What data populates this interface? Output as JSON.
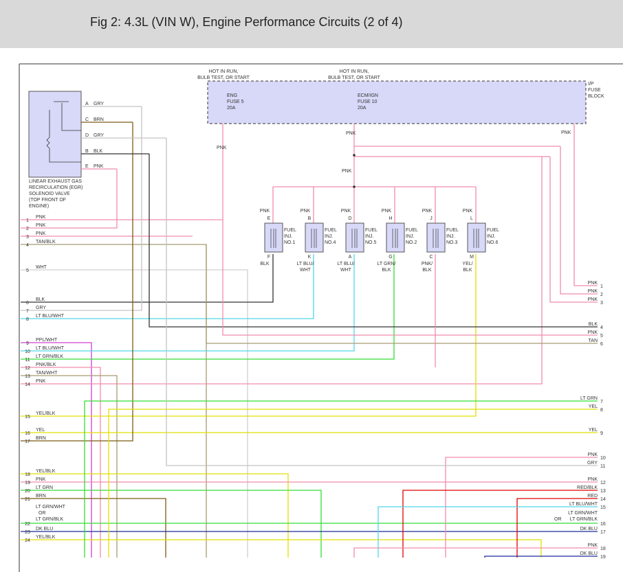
{
  "header": {
    "title": "Fig 2: 4.3L (VIN W), Engine Performance Circuits (2 of 4)"
  },
  "fuse_block": {
    "hot_left": [
      "HOT IN RUN,",
      "BULB TEST, OR START"
    ],
    "hot_right": [
      "HOT IN RUN,",
      "BULB TEST, OR START"
    ],
    "fuse_left": [
      "ENG",
      "FUSE 5",
      "20A"
    ],
    "fuse_right": [
      "ECM/IGN",
      "FUSE 10",
      "20A"
    ],
    "name": [
      "I/P",
      "FUSE",
      "BLOCK"
    ],
    "wire_left": "PNK",
    "wire_center": "PNK",
    "wire_right": "PNK",
    "wire_splice": "PNK"
  },
  "egr": {
    "pins": [
      [
        "A",
        "GRY"
      ],
      [
        "C",
        "BRN"
      ],
      [
        "D",
        "GRY"
      ],
      [
        "B",
        "BLK"
      ],
      [
        "E",
        "PNK"
      ]
    ],
    "caption": [
      "LINEAR EXHAUST GAS",
      "RECIRCULATION (EGR)",
      "SOLENOID VALVE",
      "(TOP FRONT OF",
      "ENGINE)"
    ]
  },
  "injectors": [
    {
      "top_color": "PNK",
      "top_pin": "E",
      "name": [
        "FUEL",
        "INJ.",
        "NO.1"
      ],
      "bottom_pin": "F",
      "bottom_color": [
        "BLK"
      ]
    },
    {
      "top_color": "PNK",
      "top_pin": "B",
      "name": [
        "FUEL",
        "INJ.",
        "NO.4"
      ],
      "bottom_pin": "K",
      "bottom_color": [
        "LT BLU/",
        "WHT"
      ]
    },
    {
      "top_color": "PNK",
      "top_pin": "D",
      "name": [
        "FUEL",
        "INJ.",
        "NO.5"
      ],
      "bottom_pin": "A",
      "bottom_color": [
        "LT BLU/",
        "WHT"
      ]
    },
    {
      "top_color": "PNK",
      "top_pin": "H",
      "name": [
        "FUEL",
        "INJ.",
        "NO.2"
      ],
      "bottom_pin": "G",
      "bottom_color": [
        "LT GRN/",
        "BLK"
      ]
    },
    {
      "top_color": "PNK",
      "top_pin": "J",
      "name": [
        "FUEL",
        "INJ.",
        "NO.3"
      ],
      "bottom_pin": "C",
      "bottom_color": [
        "PNK/",
        "BLK"
      ]
    },
    {
      "top_color": "PNK",
      "top_pin": "L",
      "name": [
        "FUEL",
        "INJ.",
        "NO.6"
      ],
      "bottom_pin": "M",
      "bottom_color": [
        "YEL/",
        "BLK"
      ]
    }
  ],
  "left_wires": [
    {
      "num": "1",
      "label": [
        "PNK"
      ]
    },
    {
      "num": "2",
      "label": [
        "PNK"
      ]
    },
    {
      "num": "3",
      "label": [
        "PNK"
      ]
    },
    {
      "num": "4",
      "label": [
        "TAN/BLK"
      ]
    },
    {
      "num": "5",
      "label": [
        "WHT"
      ]
    },
    {
      "num": "6",
      "label": [
        "BLK"
      ]
    },
    {
      "num": "7",
      "label": [
        "GRY"
      ]
    },
    {
      "num": "8",
      "label": [
        "LT BLU/WHT"
      ]
    },
    {
      "num": "9",
      "label": [
        "PPL/WHT"
      ]
    },
    {
      "num": "10",
      "label": [
        "LT BLU/WHT"
      ]
    },
    {
      "num": "11",
      "label": [
        "LT GRN/BLK"
      ]
    },
    {
      "num": "12",
      "label": [
        "PNK/BLK"
      ]
    },
    {
      "num": "13",
      "label": [
        "TAN/WHT"
      ]
    },
    {
      "num": "14",
      "label": [
        "PNK"
      ]
    },
    {
      "num": "15",
      "label": [
        "YEL/BLK"
      ]
    },
    {
      "num": "16",
      "label": [
        "YEL"
      ]
    },
    {
      "num": "17",
      "label": [
        "BRN"
      ]
    },
    {
      "num": "18",
      "label": [
        "YEL/BLK"
      ]
    },
    {
      "num": "19",
      "label": [
        "PNK"
      ]
    },
    {
      "num": "20",
      "label": [
        "LT GRN"
      ]
    },
    {
      "num": "21",
      "label": [
        "BRN"
      ]
    },
    {
      "num": "22",
      "label": [
        "LT GRN/WHT",
        "OR",
        "LT GRN/BLK"
      ]
    },
    {
      "num": "23",
      "label": [
        "DK BLU"
      ]
    },
    {
      "num": "24",
      "label": [
        "YEL/BLK"
      ]
    }
  ],
  "right_wires": [
    {
      "num": "1",
      "label": [
        "PNK"
      ]
    },
    {
      "num": "2",
      "label": [
        "PNK"
      ]
    },
    {
      "num": "3",
      "label": [
        "PNK"
      ]
    },
    {
      "num": "4",
      "label": [
        "BLK"
      ]
    },
    {
      "num": "5",
      "label": [
        "PNK"
      ]
    },
    {
      "num": "6",
      "label": [
        "TAN"
      ]
    },
    {
      "num": "7",
      "label": [
        "LT GRN"
      ]
    },
    {
      "num": "8",
      "label": [
        "YEL"
      ]
    },
    {
      "num": "9",
      "label": [
        "YEL"
      ]
    },
    {
      "num": "10",
      "label": [
        "PNK"
      ]
    },
    {
      "num": "11",
      "label": [
        "GRY"
      ]
    },
    {
      "num": "12",
      "label": [
        "PNK"
      ]
    },
    {
      "num": "13",
      "label": [
        "RED/BLK"
      ]
    },
    {
      "num": "14",
      "label": [
        "RED"
      ]
    },
    {
      "num": "15",
      "label": [
        "LT BLU/WHT"
      ]
    },
    {
      "num": "16",
      "label": [
        "LT GRN/WHT",
        "OR",
        "LT GRN/BLK"
      ]
    },
    {
      "num": "17",
      "label": [
        "DK BLU"
      ]
    },
    {
      "num": "18",
      "label": [
        "PNK"
      ]
    },
    {
      "num": "19",
      "label": [
        "DK BLU"
      ]
    }
  ]
}
